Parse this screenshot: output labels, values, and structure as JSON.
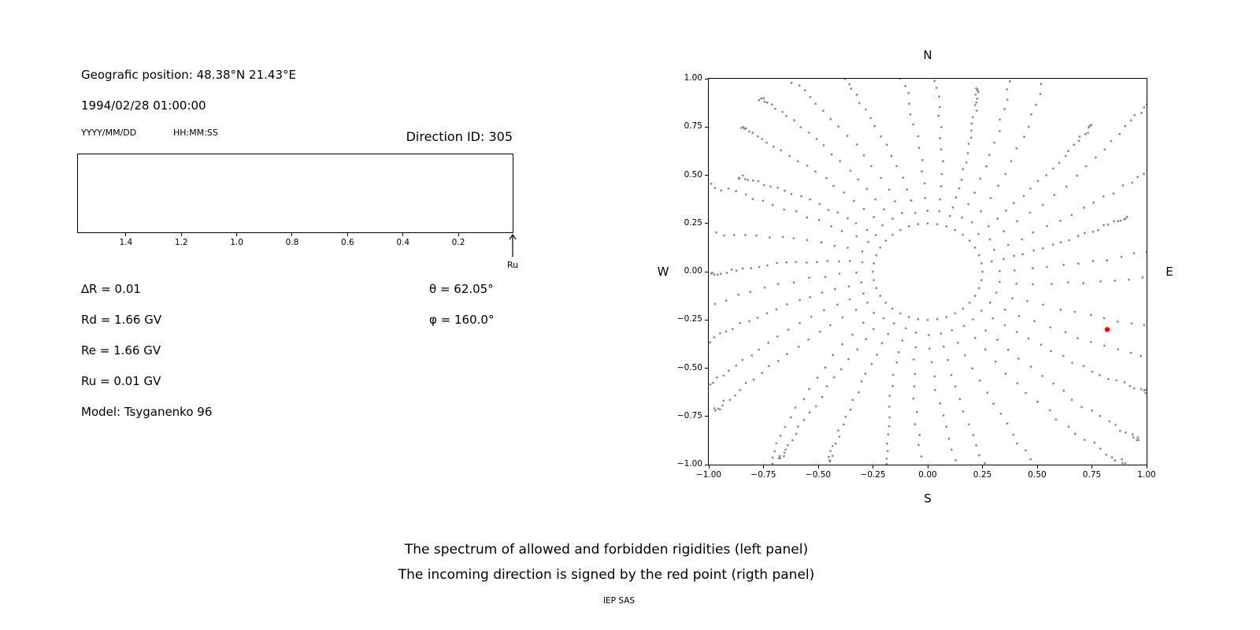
{
  "info_panel": {
    "geo_position": "Geografic position: 48.38°N 21.43°E",
    "datetime": "1994/02/28 01:00:00",
    "date_format_label": "YYYY/MM/DD",
    "time_format_label": "HH:MM:SS",
    "direction_id": "Direction ID: 305",
    "params_left": [
      "∆R = 0.01",
      "Rd = 1.66 GV",
      "Re = 1.66 GV",
      "Ru = 0.01 GV",
      "Model: Tsyganenko 96"
    ],
    "params_right": [
      "θ = 62.05°",
      "φ = 160.0°"
    ]
  },
  "caption": {
    "line1": "The spectrum of allowed and forbidden rigidities (left panel)",
    "line2": "The incoming direction is signed by the red point (rigth panel)",
    "credit": "IEP SAS"
  },
  "chart_data": [
    {
      "id": "rigidity-spectrum",
      "type": "line",
      "title": "",
      "xlabel": "",
      "ylabel": "",
      "x_axis_reversed": true,
      "xlim": [
        1.573,
        0.004
      ],
      "x_tick_values": [
        1.4,
        1.2,
        1.0,
        0.8,
        0.6,
        0.4,
        0.2
      ],
      "x_tick_labels": [
        "1.4",
        "1.2",
        "1.0",
        "0.8",
        "0.6",
        "0.4",
        "0.2"
      ],
      "arrow_label": "Ru",
      "series": []
    },
    {
      "id": "direction-map",
      "type": "scatter",
      "title": "",
      "compass": {
        "top": "N",
        "bottom": "S",
        "left": "W",
        "right": "E"
      },
      "xlim": [
        -1.0,
        1.0
      ],
      "ylim": [
        -1.0,
        1.0
      ],
      "x_tick_values": [
        -1.0,
        -0.75,
        -0.5,
        -0.25,
        0.0,
        0.25,
        0.5,
        0.75,
        1.0
      ],
      "x_tick_labels": [
        "−1.00",
        "−0.75",
        "−0.50",
        "−0.25",
        "0.00",
        "0.25",
        "0.50",
        "0.75",
        "1.00"
      ],
      "y_tick_values": [
        1.0,
        0.75,
        0.5,
        0.25,
        0.0,
        -0.25,
        -0.5,
        -0.75,
        -1.0
      ],
      "y_tick_labels": [
        "1.00",
        "0.75",
        "0.50",
        "0.25",
        "0.00",
        "−0.25",
        "−0.50",
        "−0.75",
        "−1.00"
      ],
      "dots_color": "#8c8c8c",
      "inner_ring": {
        "radius": 0.25,
        "points": 36
      },
      "spokes": {
        "count": 36,
        "angle_step_deg": 10,
        "inner_radius": 0.25,
        "outer_radius_min": 0.95,
        "outer_radius_max": 1.4,
        "points_per_spoke": 22,
        "curvature": 0.18
      },
      "red_point": {
        "x": 0.82,
        "y": -0.3,
        "color": "#ff0000"
      }
    }
  ]
}
